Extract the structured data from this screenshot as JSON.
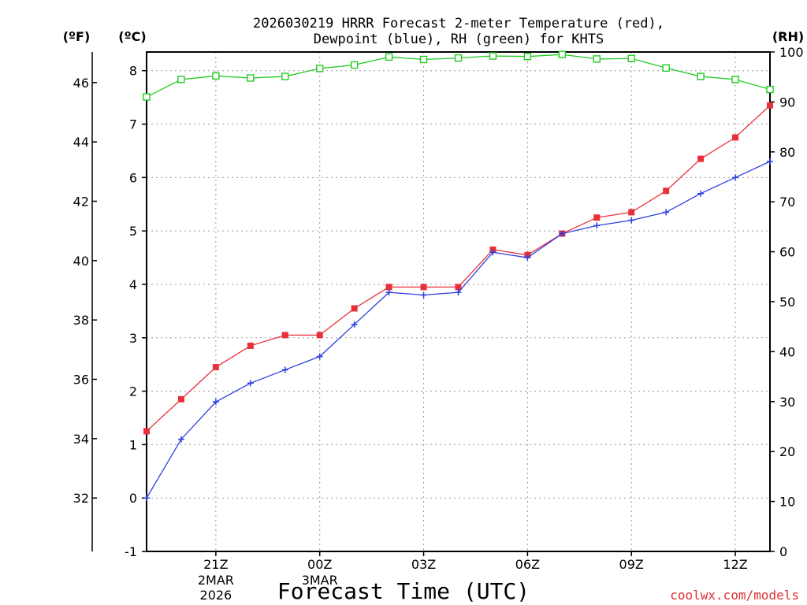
{
  "chart_data": {
    "type": "line",
    "title_line1": "2026030219 HRRR Forecast 2-meter Temperature (red),",
    "title_line2": "Dewpoint (blue), RH (green) for KHTS",
    "xlabel": "Forecast Time (UTC)",
    "left_axis_f_label": "(ºF)",
    "left_axis_c_label": "(ºC)",
    "right_axis_label": "(RH)",
    "credit": "coolwx.com/models",
    "x_tick_labels": [
      "21Z",
      "00Z",
      "03Z",
      "06Z",
      "09Z",
      "12Z"
    ],
    "x_tick_hours": [
      21,
      24,
      27,
      30,
      33,
      36
    ],
    "x_date_labels": [
      {
        "hour": 21,
        "lines": [
          "2MAR",
          "2026"
        ]
      },
      {
        "hour": 24,
        "lines": [
          "3MAR"
        ]
      }
    ],
    "x_range_hours": [
      19,
      37
    ],
    "hours": [
      19,
      20,
      21,
      22,
      23,
      24,
      25,
      26,
      27,
      28,
      29,
      30,
      31,
      32,
      33,
      34,
      35,
      36,
      37
    ],
    "y_celsius_range": [
      -1,
      8.35
    ],
    "y_celsius_ticks": [
      -1,
      0,
      1,
      2,
      3,
      4,
      5,
      6,
      7,
      8
    ],
    "y_fahrenheit_ticks": [
      32,
      34,
      36,
      38,
      40,
      42,
      44,
      46
    ],
    "y_rh_range": [
      0,
      100
    ],
    "y_rh_ticks": [
      0,
      10,
      20,
      30,
      40,
      50,
      60,
      70,
      80,
      90,
      100
    ],
    "grid": true,
    "series": [
      {
        "name": "Temperature",
        "axis": "celsius",
        "color": "#e8303a",
        "marker": "filled-square",
        "values": [
          1.25,
          1.85,
          2.45,
          2.85,
          3.05,
          3.05,
          3.55,
          3.95,
          3.95,
          3.95,
          4.65,
          4.55,
          4.95,
          5.25,
          5.35,
          5.75,
          6.35,
          6.75,
          7.35
        ]
      },
      {
        "name": "Dewpoint",
        "axis": "celsius",
        "color": "#2b3fe0",
        "marker": "plus",
        "values": [
          0.0,
          1.1,
          1.8,
          2.15,
          2.4,
          2.65,
          3.25,
          3.85,
          3.8,
          3.85,
          4.6,
          4.5,
          4.95,
          5.1,
          5.2,
          5.35,
          5.7,
          6.0,
          6.3
        ]
      },
      {
        "name": "RH",
        "axis": "rh",
        "color": "#22cc22",
        "marker": "open-square",
        "values": [
          91.0,
          94.5,
          95.2,
          94.8,
          95.1,
          96.7,
          97.4,
          99.0,
          98.5,
          98.8,
          99.2,
          99.1,
          99.5,
          98.6,
          98.7,
          96.8,
          95.1,
          94.5,
          92.5
        ]
      }
    ]
  }
}
